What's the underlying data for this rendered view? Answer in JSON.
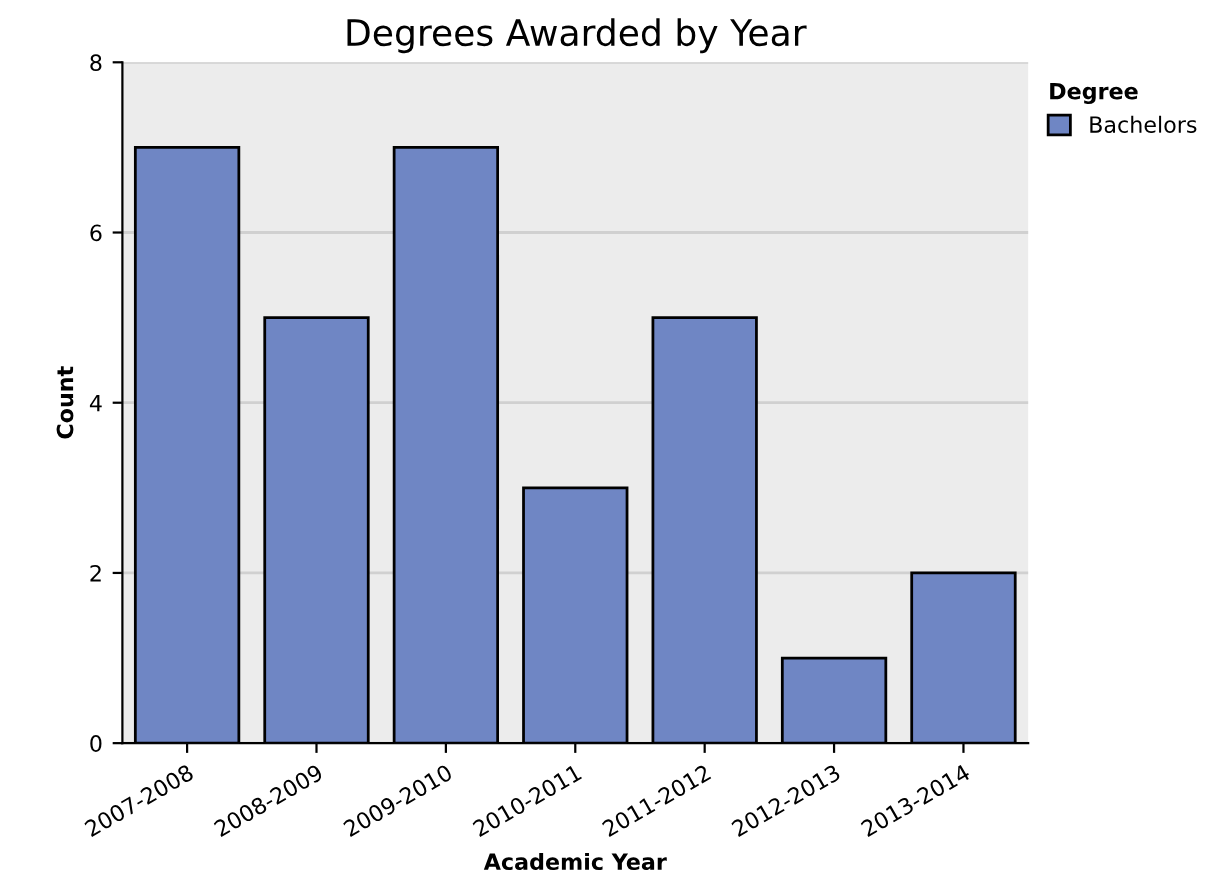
{
  "chart_data": {
    "type": "bar",
    "title": "Degrees Awarded by Year",
    "xlabel": "Academic Year",
    "ylabel": "Count",
    "legend_title": "Degree",
    "categories": [
      "2007-2008",
      "2008-2009",
      "2009-2010",
      "2010-2011",
      "2011-2012",
      "2012-2013",
      "2013-2014"
    ],
    "series": [
      {
        "name": "Bachelors",
        "color": "#6f86c4",
        "values": [
          7,
          5,
          7,
          3,
          5,
          1,
          2
        ]
      }
    ],
    "ylim": [
      0,
      8
    ],
    "yticks": [
      0,
      2,
      4,
      6,
      8
    ],
    "grid": "y",
    "legend": "top right"
  }
}
